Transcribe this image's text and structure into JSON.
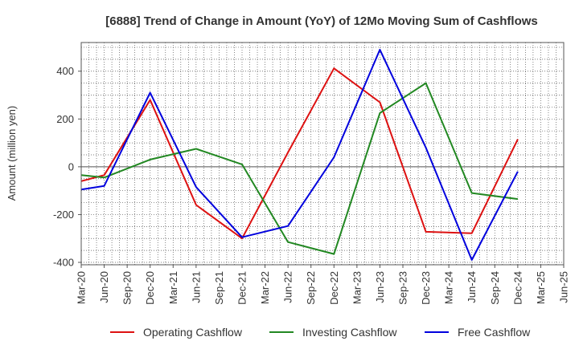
{
  "chart_data": {
    "type": "line",
    "title": "[6888]  Trend of Change in Amount (YoY) of 12Mo Moving Sum of Cashflows",
    "xlabel": "",
    "ylabel": "Amount (million yen)",
    "ylim": [
      -410,
      520
    ],
    "yticks": [
      -400,
      -200,
      0,
      200,
      400
    ],
    "categories": [
      "Mar-20",
      "Jun-20",
      "Sep-20",
      "Dec-20",
      "Mar-21",
      "Jun-21",
      "Sep-21",
      "Dec-21",
      "Mar-22",
      "Jun-22",
      "Sep-22",
      "Dec-22",
      "Mar-23",
      "Jun-23",
      "Sep-23",
      "Dec-23",
      "Mar-24",
      "Jun-24",
      "Sep-24",
      "Dec-24",
      "Mar-25",
      "Jun-25"
    ],
    "grid": true,
    "legend_position": "bottom",
    "series": [
      {
        "name": "Operating Cashflow",
        "color": "#dd1111",
        "values": [
          -60,
          -35,
          null,
          280,
          null,
          -160,
          null,
          -300,
          null,
          60,
          null,
          412,
          null,
          270,
          null,
          -272,
          null,
          -278,
          null,
          115,
          null,
          null
        ]
      },
      {
        "name": "Investing Cashflow",
        "color": "#228822",
        "values": [
          -35,
          -45,
          null,
          30,
          null,
          75,
          null,
          10,
          null,
          -315,
          null,
          -365,
          null,
          225,
          null,
          350,
          null,
          -110,
          null,
          -135,
          null,
          null
        ]
      },
      {
        "name": "Free Cashflow",
        "color": "#0000dd",
        "values": [
          -95,
          -80,
          null,
          310,
          null,
          -85,
          null,
          -295,
          null,
          -248,
          null,
          40,
          null,
          490,
          null,
          80,
          null,
          -390,
          null,
          -20,
          null,
          null
        ]
      }
    ]
  }
}
